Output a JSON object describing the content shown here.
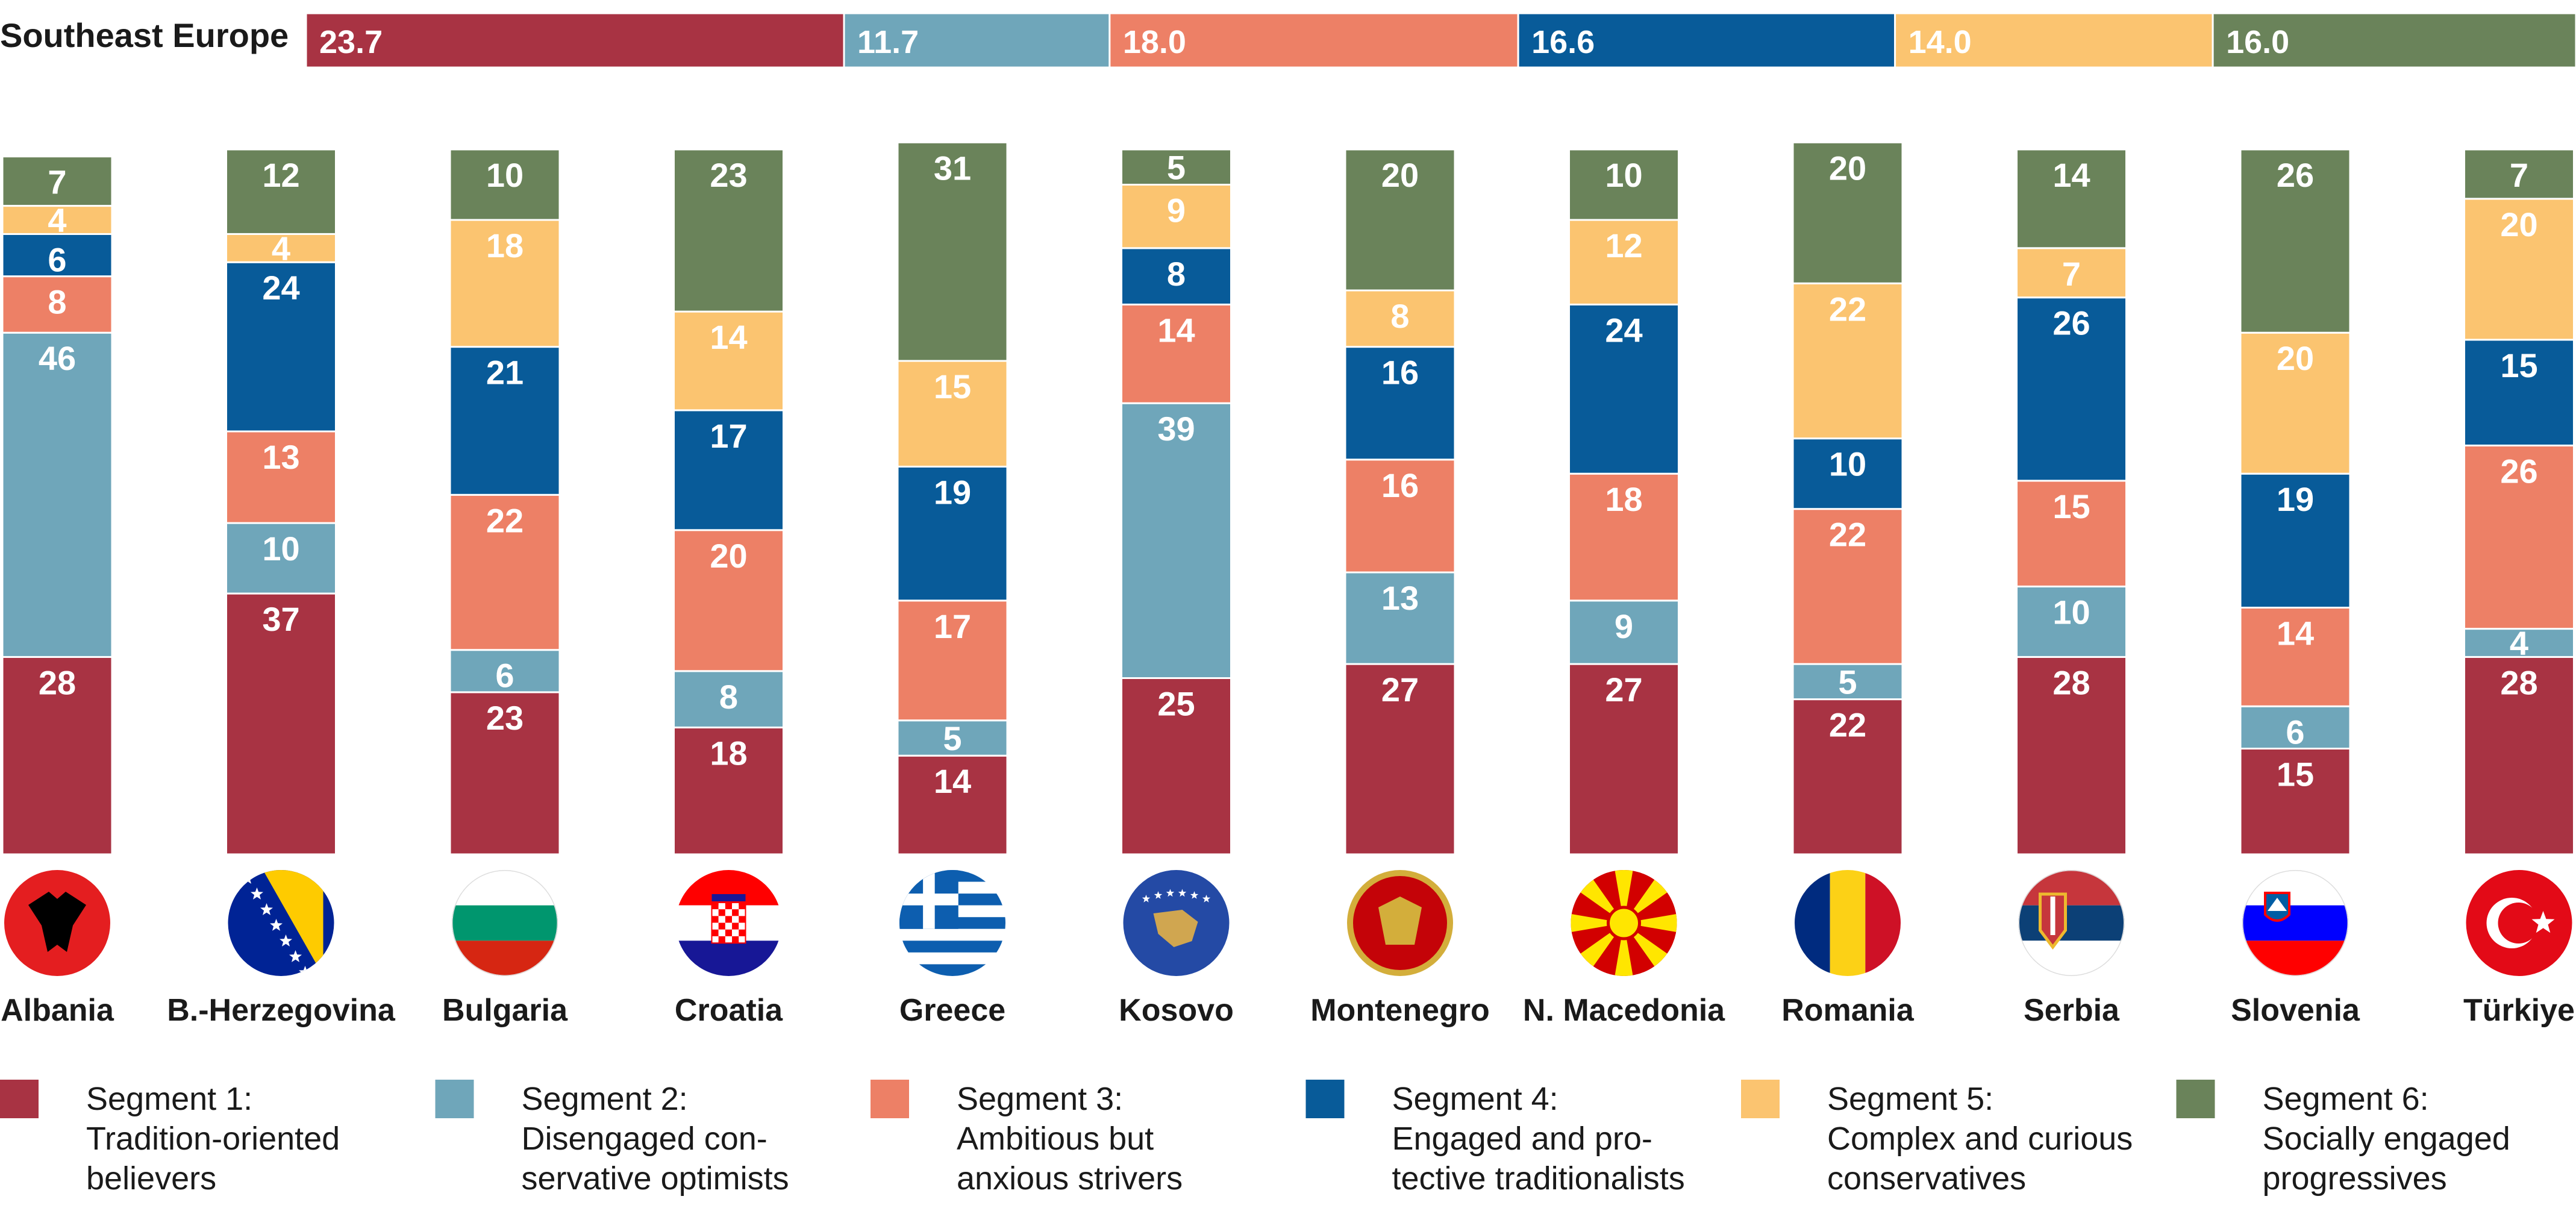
{
  "chart_data": {
    "type": "stacked-bar",
    "summary": {
      "label": "Southeast Europe",
      "values": [
        "23.7",
        "11.7",
        "18.0",
        "16.6",
        "14.0",
        "16.0"
      ]
    },
    "segments": [
      {
        "key": "s1",
        "title": "Segment 1:",
        "desc_lines": [
          "Tradition-oriented",
          "believers"
        ],
        "color": "#a83343"
      },
      {
        "key": "s2",
        "title": "Segment 2:",
        "desc_lines": [
          "Disengaged con-",
          "servative optimists"
        ],
        "color": "#6fa6ba"
      },
      {
        "key": "s3",
        "title": "Segment 3:",
        "desc_lines": [
          "Ambitious but",
          "anxious strivers"
        ],
        "color": "#ed8066"
      },
      {
        "key": "s4",
        "title": "Segment 4:",
        "desc_lines": [
          "Engaged and pro-",
          "tective traditionalists"
        ],
        "color": "#085b99"
      },
      {
        "key": "s5",
        "title": "Segment 5:",
        "desc_lines": [
          "Complex and curious",
          "conservatives"
        ],
        "color": "#fbc470"
      },
      {
        "key": "s6",
        "title": "Segment 6:",
        "desc_lines": [
          "Socially engaged",
          "progressives"
        ],
        "color": "#6a835a"
      }
    ],
    "countries": [
      {
        "name": "Albania",
        "flag": "albania",
        "values": [
          28,
          46,
          8,
          6,
          4,
          7
        ]
      },
      {
        "name": "B.-Herzegovina",
        "flag": "bosnia",
        "values": [
          37,
          10,
          13,
          24,
          4,
          12
        ]
      },
      {
        "name": "Bulgaria",
        "flag": "bulgaria",
        "values": [
          23,
          6,
          22,
          21,
          18,
          10
        ]
      },
      {
        "name": "Croatia",
        "flag": "croatia",
        "values": [
          18,
          8,
          20,
          17,
          14,
          23
        ]
      },
      {
        "name": "Greece",
        "flag": "greece",
        "values": [
          14,
          5,
          17,
          19,
          15,
          31
        ]
      },
      {
        "name": "Kosovo",
        "flag": "kosovo",
        "values": [
          25,
          39,
          14,
          8,
          9,
          5
        ]
      },
      {
        "name": "Montenegro",
        "flag": "montenegro",
        "values": [
          27,
          13,
          16,
          16,
          8,
          20
        ]
      },
      {
        "name": "N. Macedonia",
        "flag": "macedonia",
        "values": [
          27,
          9,
          18,
          24,
          12,
          10
        ]
      },
      {
        "name": "Romania",
        "flag": "romania",
        "values": [
          22,
          5,
          22,
          10,
          22,
          20
        ]
      },
      {
        "name": "Serbia",
        "flag": "serbia",
        "values": [
          28,
          10,
          15,
          26,
          7,
          14
        ]
      },
      {
        "name": "Slovenia",
        "flag": "slovenia",
        "values": [
          15,
          6,
          14,
          19,
          20,
          26
        ]
      },
      {
        "name": "Türkiye",
        "flag": "turkiye",
        "values": [
          28,
          4,
          26,
          15,
          20,
          7
        ]
      }
    ]
  }
}
